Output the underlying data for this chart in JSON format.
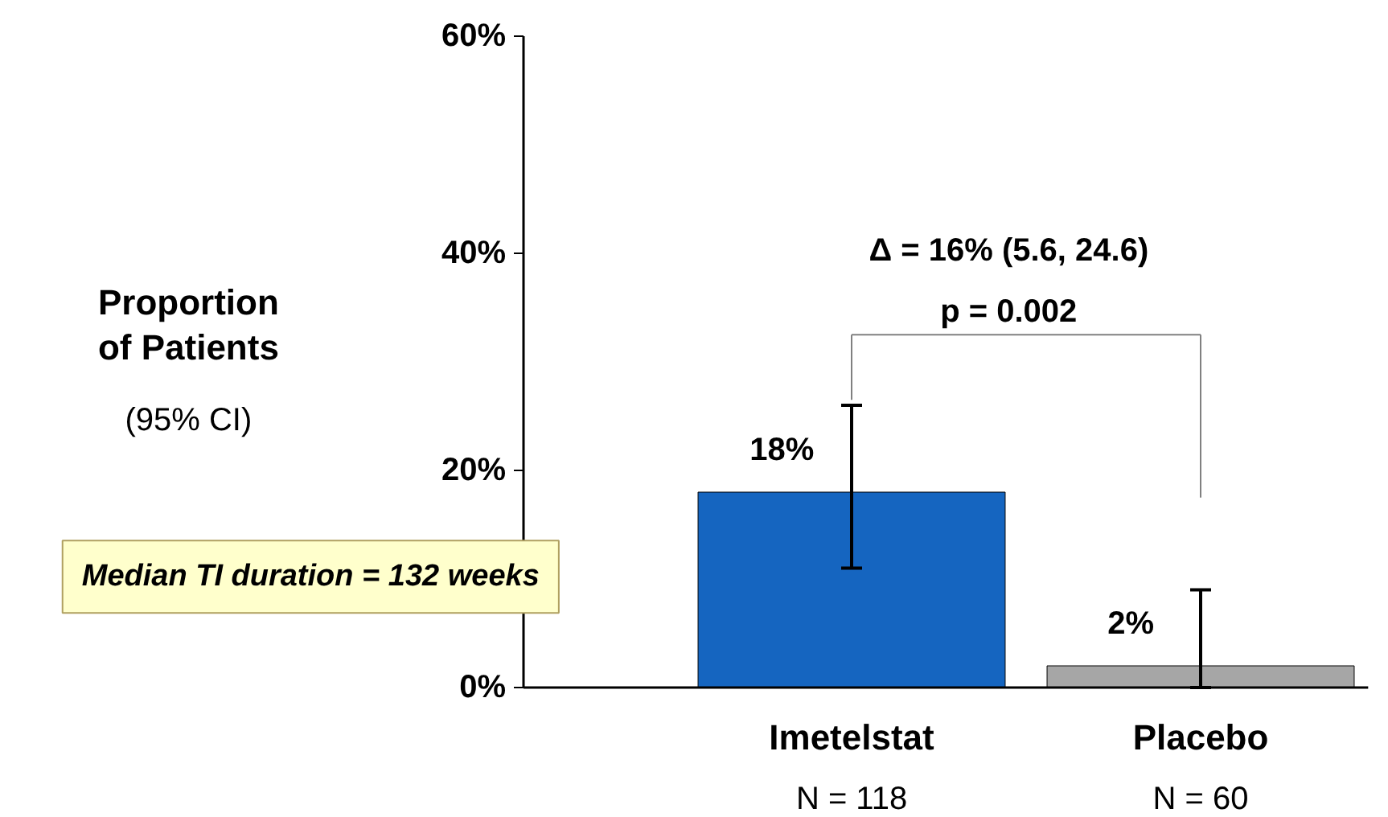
{
  "chart_data": {
    "type": "bar",
    "ylabel": "Proportion of Patients",
    "categories": [
      "Imetelstat",
      "Placebo"
    ],
    "values": [
      18,
      2
    ],
    "colors": [
      "#1565c0",
      "#a6a6a6"
    ],
    "errors": [
      [
        11,
        26
      ],
      [
        0,
        9
      ]
    ],
    "value_labels": [
      "18%",
      "2%"
    ],
    "ylim": [
      0,
      60
    ],
    "yticks": [
      {
        "value": 0,
        "label": "0%"
      },
      {
        "value": 20,
        "label": "20%"
      },
      {
        "value": 40,
        "label": "40%"
      },
      {
        "value": 60,
        "label": "60%"
      }
    ],
    "annotations": [
      "(95% CI)",
      "N = 118",
      "N = 60",
      "Δ = 16% (5.6, 24.6)",
      "p = 0.002",
      "Median TI duration = 132 weeks"
    ],
    "grid": false
  }
}
